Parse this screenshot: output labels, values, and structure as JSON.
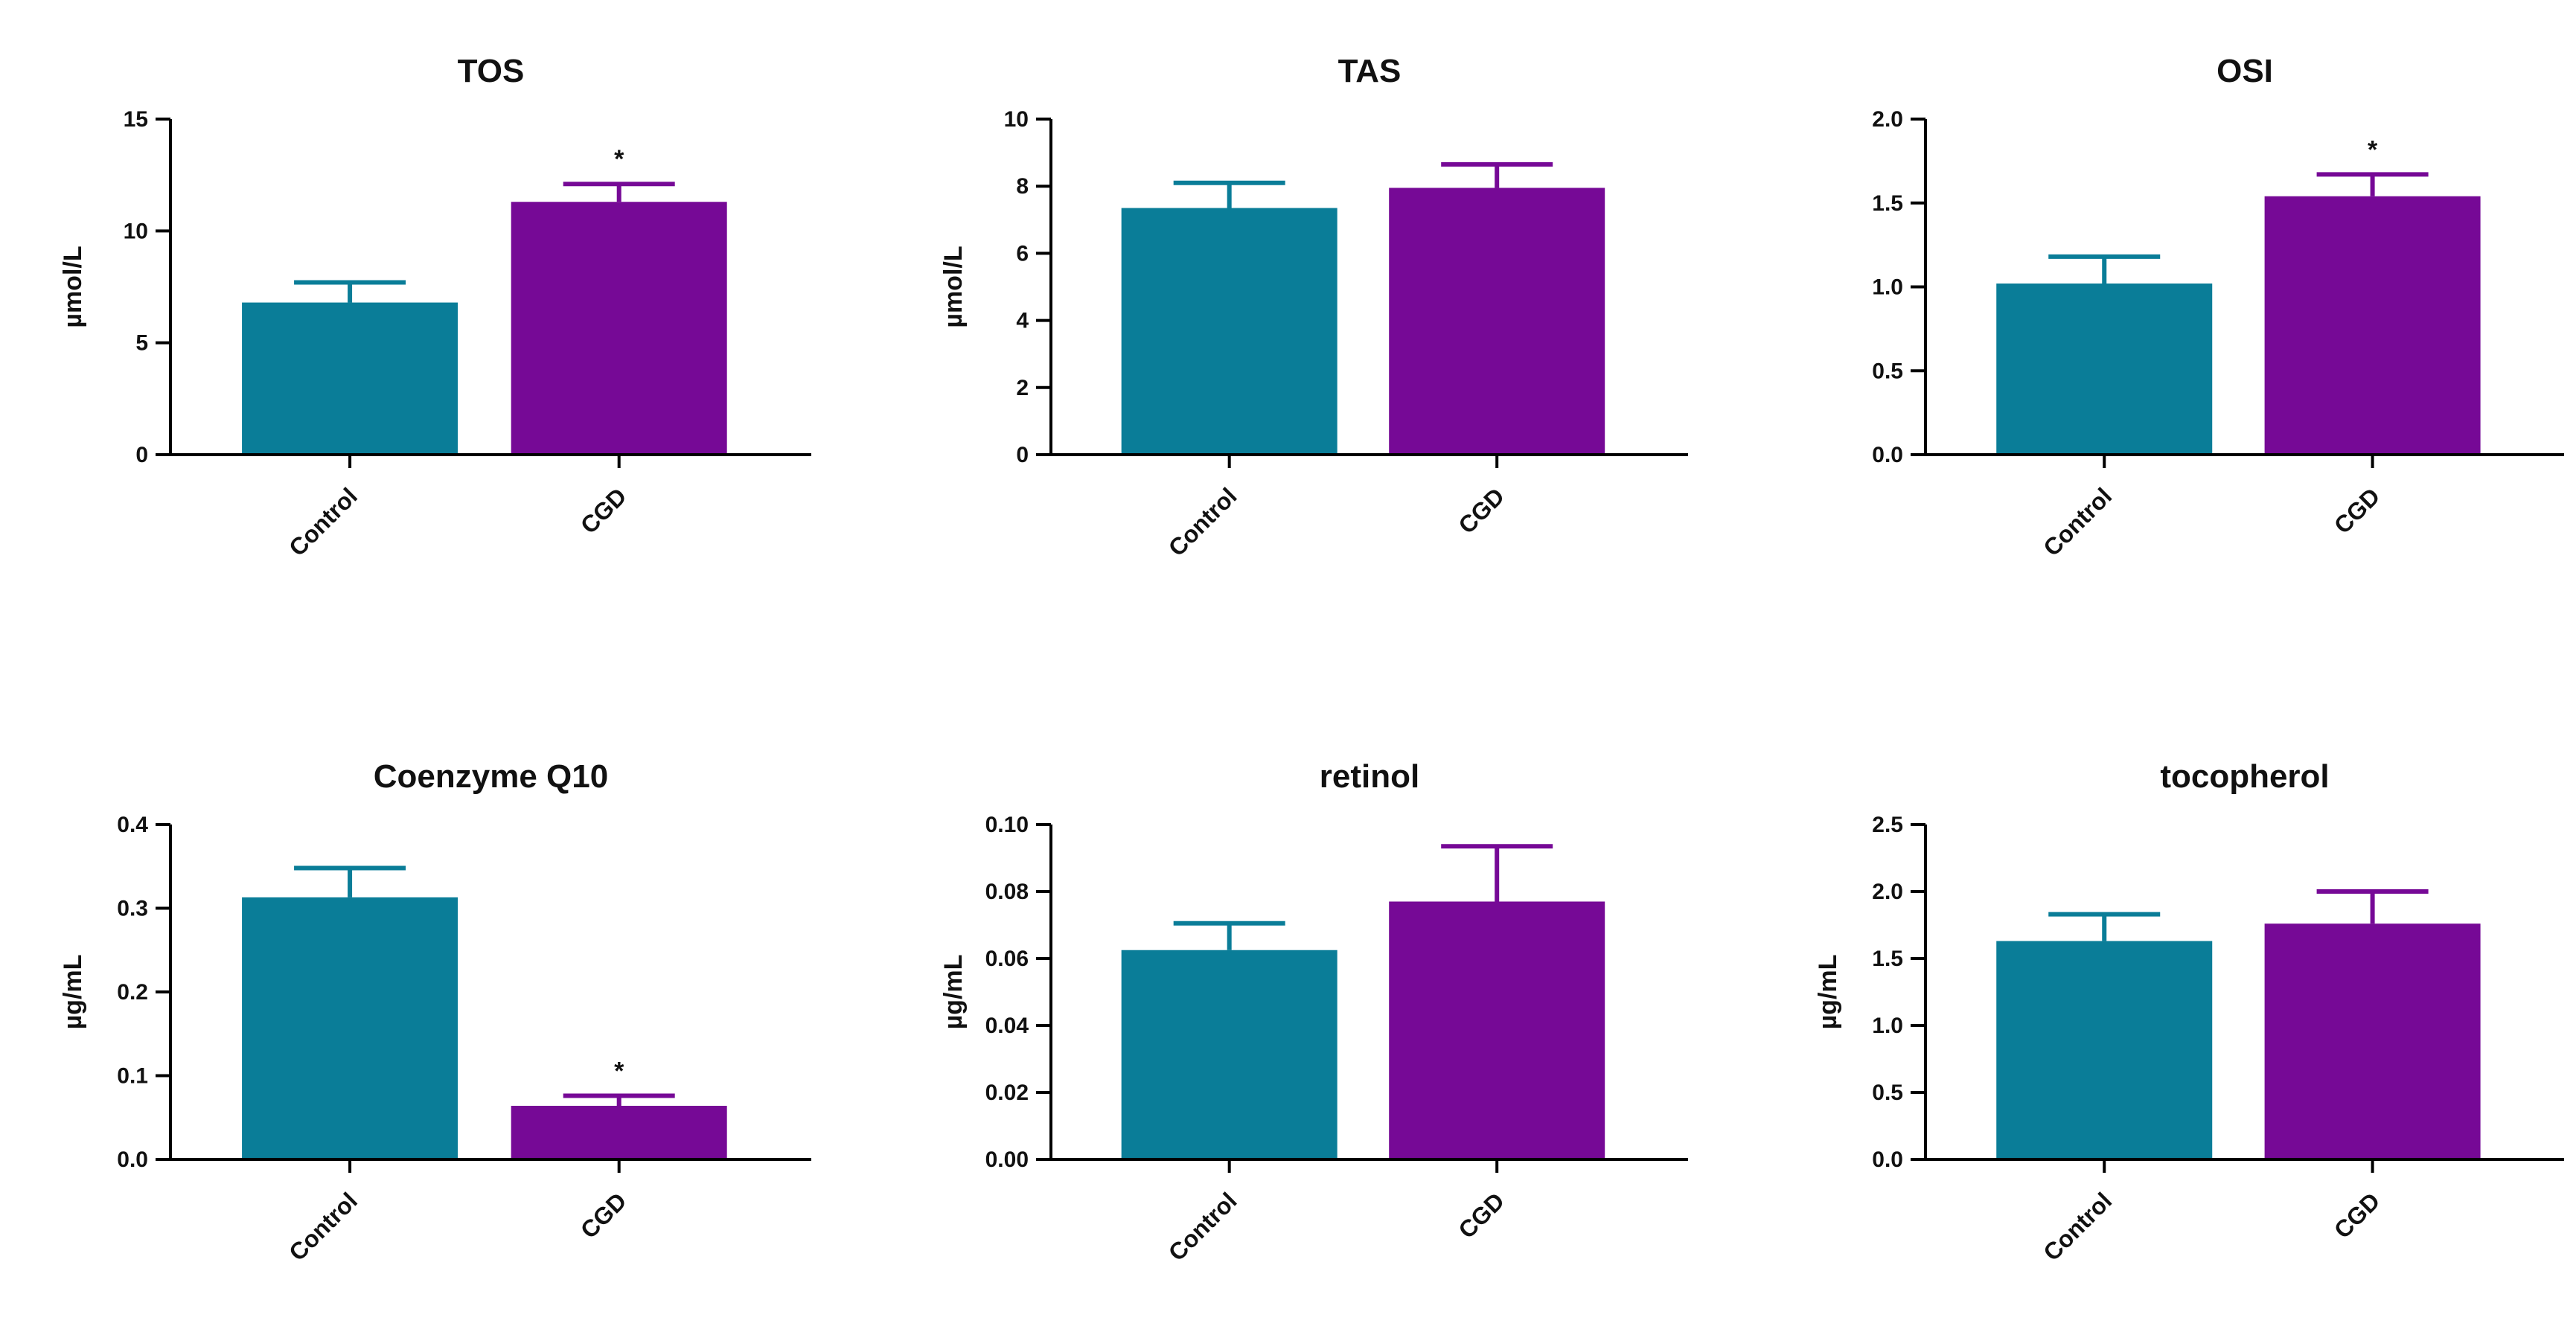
{
  "colors": {
    "control": "#0a7d98",
    "cgd": "#760996",
    "axis": "#000000"
  },
  "chart_data": [
    {
      "type": "bar",
      "title": "TOS",
      "ylabel": "µmol/L",
      "categories": [
        "Control",
        "CGD"
      ],
      "values": [
        6.8,
        11.3
      ],
      "errors": [
        0.9,
        0.8
      ],
      "ylim": [
        0,
        15
      ],
      "yticks": [
        0,
        5,
        10,
        15
      ],
      "ytick_labels": [
        "0",
        "5",
        "10",
        "15"
      ],
      "significance": [
        "",
        "*"
      ]
    },
    {
      "type": "bar",
      "title": "TAS",
      "ylabel": "µmol/L",
      "categories": [
        "Control",
        "CGD"
      ],
      "values": [
        7.35,
        7.95
      ],
      "errors": [
        0.75,
        0.7
      ],
      "ylim": [
        0,
        10
      ],
      "yticks": [
        0,
        2,
        4,
        6,
        8,
        10
      ],
      "ytick_labels": [
        "0",
        "2",
        "4",
        "6",
        "8",
        "10"
      ],
      "significance": [
        "",
        ""
      ]
    },
    {
      "type": "bar",
      "title": "OSI",
      "ylabel": "",
      "categories": [
        "Control",
        "CGD"
      ],
      "values": [
        1.02,
        1.54
      ],
      "errors": [
        0.16,
        0.13
      ],
      "ylim": [
        0,
        2
      ],
      "yticks": [
        0,
        0.5,
        1,
        1.5,
        2
      ],
      "ytick_labels": [
        "0.0",
        "0.5",
        "1.0",
        "1.5",
        "2.0"
      ],
      "significance": [
        "",
        "*"
      ]
    },
    {
      "type": "bar",
      "title": "Coenzyme Q10",
      "ylabel": "µg/mL",
      "categories": [
        "Control",
        "CGD"
      ],
      "values": [
        0.313,
        0.064
      ],
      "errors": [
        0.035,
        0.012
      ],
      "ylim": [
        0,
        0.4
      ],
      "yticks": [
        0,
        0.1,
        0.2,
        0.3,
        0.4
      ],
      "ytick_labels": [
        "0.0",
        "0.1",
        "0.2",
        "0.3",
        "0.4"
      ],
      "significance": [
        "",
        "*"
      ]
    },
    {
      "type": "bar",
      "title": "retinol",
      "ylabel": "µg/mL",
      "categories": [
        "Control",
        "CGD"
      ],
      "values": [
        0.0625,
        0.077
      ],
      "errors": [
        0.008,
        0.0165
      ],
      "ylim": [
        0,
        0.1
      ],
      "yticks": [
        0,
        0.02,
        0.04,
        0.06,
        0.08,
        0.1
      ],
      "ytick_labels": [
        "0.00",
        "0.02",
        "0.04",
        "0.06",
        "0.08",
        "0.10"
      ],
      "significance": [
        "",
        ""
      ]
    },
    {
      "type": "bar",
      "title": "tocopherol",
      "ylabel": "µg/mL",
      "categories": [
        "Control",
        "CGD"
      ],
      "values": [
        1.63,
        1.76
      ],
      "errors": [
        0.2,
        0.24
      ],
      "ylim": [
        0,
        2.5
      ],
      "yticks": [
        0,
        0.5,
        1,
        1.5,
        2,
        2.5
      ],
      "ytick_labels": [
        "0.0",
        "0.5",
        "1.0",
        "1.5",
        "2.0",
        "2.5"
      ],
      "significance": [
        "",
        ""
      ]
    }
  ]
}
